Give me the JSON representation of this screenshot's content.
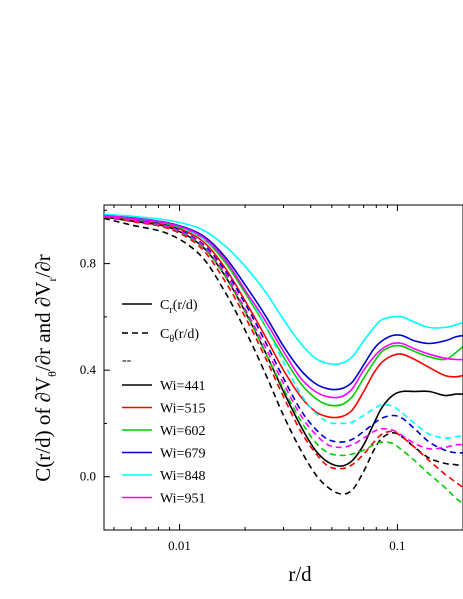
{
  "chart_data": {
    "type": "line",
    "xlabel": "r/d",
    "ylabel": "C(r/d) of ∂Vθ/∂r and ∂Vr/∂r",
    "x_scale": "log",
    "xlim": [
      0.0045,
      0.2
    ],
    "ylim": [
      -0.2,
      1.02
    ],
    "x_ticks": [
      0.01,
      0.1
    ],
    "x_tick_labels": [
      "0.01",
      "0.1"
    ],
    "y_ticks": [
      0.0,
      0.4,
      0.8
    ],
    "y_tick_labels": [
      "0.0",
      "0.4",
      "0.8"
    ],
    "legend_position": "center-left",
    "legend": {
      "style_solid": {
        "main": "C",
        "sub": "r",
        "tail": "(r/d)"
      },
      "style_dashed": {
        "main": "C",
        "sub": "θ",
        "tail": "(r/d)"
      },
      "separator": "--"
    },
    "series": [
      {
        "name": "Wi=441",
        "color": "#000000",
        "solid": [
          [
            0.0045,
            0.975
          ],
          [
            0.006,
            0.96
          ],
          [
            0.009,
            0.935
          ],
          [
            0.0125,
            0.87
          ],
          [
            0.016,
            0.76
          ],
          [
            0.02,
            0.62
          ],
          [
            0.025,
            0.46
          ],
          [
            0.03,
            0.32
          ],
          [
            0.036,
            0.19
          ],
          [
            0.042,
            0.1
          ],
          [
            0.048,
            0.055
          ],
          [
            0.055,
            0.04
          ],
          [
            0.062,
            0.06
          ],
          [
            0.07,
            0.12
          ],
          [
            0.078,
            0.2
          ],
          [
            0.085,
            0.26
          ],
          [
            0.095,
            0.305
          ],
          [
            0.105,
            0.32
          ],
          [
            0.12,
            0.32
          ],
          [
            0.14,
            0.32
          ],
          [
            0.165,
            0.305
          ],
          [
            0.185,
            0.31
          ],
          [
            0.2,
            0.31
          ]
        ],
        "dashed": [
          [
            0.0045,
            0.97
          ],
          [
            0.006,
            0.945
          ],
          [
            0.009,
            0.91
          ],
          [
            0.0125,
            0.83
          ],
          [
            0.016,
            0.7
          ],
          [
            0.02,
            0.55
          ],
          [
            0.025,
            0.38
          ],
          [
            0.03,
            0.23
          ],
          [
            0.036,
            0.1
          ],
          [
            0.042,
            0.01
          ],
          [
            0.048,
            -0.04
          ],
          [
            0.055,
            -0.065
          ],
          [
            0.062,
            -0.05
          ],
          [
            0.07,
            0.02
          ],
          [
            0.078,
            0.1
          ],
          [
            0.085,
            0.145
          ],
          [
            0.095,
            0.165
          ],
          [
            0.105,
            0.15
          ],
          [
            0.12,
            0.11
          ],
          [
            0.14,
            0.07
          ],
          [
            0.165,
            0.05
          ],
          [
            0.185,
            0.045
          ],
          [
            0.2,
            0.04
          ]
        ]
      },
      {
        "name": "Wi=515",
        "color": "#ff0000",
        "solid": [
          [
            0.0045,
            0.978
          ],
          [
            0.006,
            0.965
          ],
          [
            0.009,
            0.942
          ],
          [
            0.0125,
            0.89
          ],
          [
            0.016,
            0.79
          ],
          [
            0.02,
            0.66
          ],
          [
            0.025,
            0.52
          ],
          [
            0.03,
            0.4
          ],
          [
            0.036,
            0.3
          ],
          [
            0.042,
            0.245
          ],
          [
            0.048,
            0.225
          ],
          [
            0.055,
            0.225
          ],
          [
            0.062,
            0.25
          ],
          [
            0.07,
            0.32
          ],
          [
            0.078,
            0.39
          ],
          [
            0.085,
            0.43
          ],
          [
            0.095,
            0.455
          ],
          [
            0.105,
            0.46
          ],
          [
            0.12,
            0.44
          ],
          [
            0.14,
            0.41
          ],
          [
            0.165,
            0.38
          ],
          [
            0.185,
            0.375
          ],
          [
            0.2,
            0.38
          ]
        ],
        "dashed": [
          [
            0.0045,
            0.975
          ],
          [
            0.006,
            0.958
          ],
          [
            0.009,
            0.93
          ],
          [
            0.0125,
            0.86
          ],
          [
            0.016,
            0.74
          ],
          [
            0.02,
            0.6
          ],
          [
            0.025,
            0.44
          ],
          [
            0.03,
            0.3
          ],
          [
            0.036,
            0.17
          ],
          [
            0.042,
            0.09
          ],
          [
            0.048,
            0.04
          ],
          [
            0.055,
            0.03
          ],
          [
            0.062,
            0.045
          ],
          [
            0.07,
            0.085
          ],
          [
            0.078,
            0.13
          ],
          [
            0.085,
            0.16
          ],
          [
            0.095,
            0.17
          ],
          [
            0.105,
            0.15
          ],
          [
            0.12,
            0.11
          ],
          [
            0.14,
            0.06
          ],
          [
            0.165,
            0.01
          ],
          [
            0.185,
            -0.02
          ],
          [
            0.2,
            -0.04
          ]
        ]
      },
      {
        "name": "Wi=602",
        "color": "#00cc00",
        "solid": [
          [
            0.0045,
            0.98
          ],
          [
            0.006,
            0.968
          ],
          [
            0.009,
            0.946
          ],
          [
            0.0125,
            0.9
          ],
          [
            0.016,
            0.81
          ],
          [
            0.02,
            0.69
          ],
          [
            0.025,
            0.56
          ],
          [
            0.03,
            0.45
          ],
          [
            0.036,
            0.35
          ],
          [
            0.042,
            0.295
          ],
          [
            0.048,
            0.27
          ],
          [
            0.055,
            0.27
          ],
          [
            0.062,
            0.3
          ],
          [
            0.07,
            0.37
          ],
          [
            0.078,
            0.43
          ],
          [
            0.085,
            0.47
          ],
          [
            0.095,
            0.49
          ],
          [
            0.105,
            0.49
          ],
          [
            0.12,
            0.47
          ],
          [
            0.14,
            0.45
          ],
          [
            0.165,
            0.44
          ],
          [
            0.185,
            0.465
          ],
          [
            0.2,
            0.49
          ]
        ],
        "dashed": [
          [
            0.0045,
            0.977
          ],
          [
            0.006,
            0.962
          ],
          [
            0.009,
            0.935
          ],
          [
            0.0125,
            0.87
          ],
          [
            0.016,
            0.76
          ],
          [
            0.02,
            0.62
          ],
          [
            0.025,
            0.46
          ],
          [
            0.03,
            0.33
          ],
          [
            0.036,
            0.21
          ],
          [
            0.042,
            0.13
          ],
          [
            0.048,
            0.09
          ],
          [
            0.055,
            0.08
          ],
          [
            0.062,
            0.085
          ],
          [
            0.07,
            0.1
          ],
          [
            0.078,
            0.12
          ],
          [
            0.085,
            0.13
          ],
          [
            0.095,
            0.125
          ],
          [
            0.105,
            0.1
          ],
          [
            0.12,
            0.06
          ],
          [
            0.14,
            0.01
          ],
          [
            0.165,
            -0.04
          ],
          [
            0.185,
            -0.08
          ],
          [
            0.2,
            -0.1
          ]
        ]
      },
      {
        "name": "Wi=679",
        "color": "#0000cc",
        "solid": [
          [
            0.0045,
            0.982
          ],
          [
            0.006,
            0.972
          ],
          [
            0.009,
            0.952
          ],
          [
            0.0125,
            0.91
          ],
          [
            0.016,
            0.83
          ],
          [
            0.02,
            0.72
          ],
          [
            0.025,
            0.6
          ],
          [
            0.03,
            0.49
          ],
          [
            0.036,
            0.4
          ],
          [
            0.042,
            0.35
          ],
          [
            0.048,
            0.33
          ],
          [
            0.055,
            0.33
          ],
          [
            0.062,
            0.355
          ],
          [
            0.07,
            0.42
          ],
          [
            0.078,
            0.48
          ],
          [
            0.085,
            0.51
          ],
          [
            0.095,
            0.53
          ],
          [
            0.105,
            0.53
          ],
          [
            0.12,
            0.51
          ],
          [
            0.14,
            0.5
          ],
          [
            0.165,
            0.51
          ],
          [
            0.185,
            0.525
          ],
          [
            0.2,
            0.53
          ]
        ],
        "dashed": [
          [
            0.0045,
            0.98
          ],
          [
            0.006,
            0.965
          ],
          [
            0.009,
            0.94
          ],
          [
            0.0125,
            0.88
          ],
          [
            0.016,
            0.78
          ],
          [
            0.02,
            0.65
          ],
          [
            0.025,
            0.5
          ],
          [
            0.03,
            0.37
          ],
          [
            0.036,
            0.25
          ],
          [
            0.042,
            0.18
          ],
          [
            0.048,
            0.14
          ],
          [
            0.055,
            0.13
          ],
          [
            0.062,
            0.14
          ],
          [
            0.07,
            0.17
          ],
          [
            0.078,
            0.2
          ],
          [
            0.085,
            0.22
          ],
          [
            0.095,
            0.23
          ],
          [
            0.105,
            0.22
          ],
          [
            0.12,
            0.18
          ],
          [
            0.14,
            0.13
          ],
          [
            0.165,
            0.1
          ],
          [
            0.185,
            0.09
          ],
          [
            0.2,
            0.09
          ]
        ]
      },
      {
        "name": "Wi=848",
        "color": "#00ffff",
        "solid": [
          [
            0.0045,
            0.985
          ],
          [
            0.006,
            0.978
          ],
          [
            0.009,
            0.962
          ],
          [
            0.0125,
            0.93
          ],
          [
            0.016,
            0.87
          ],
          [
            0.02,
            0.79
          ],
          [
            0.025,
            0.69
          ],
          [
            0.03,
            0.59
          ],
          [
            0.036,
            0.5
          ],
          [
            0.042,
            0.445
          ],
          [
            0.048,
            0.425
          ],
          [
            0.055,
            0.425
          ],
          [
            0.062,
            0.45
          ],
          [
            0.07,
            0.51
          ],
          [
            0.078,
            0.56
          ],
          [
            0.085,
            0.59
          ],
          [
            0.095,
            0.6
          ],
          [
            0.105,
            0.6
          ],
          [
            0.12,
            0.58
          ],
          [
            0.14,
            0.56
          ],
          [
            0.165,
            0.56
          ],
          [
            0.185,
            0.57
          ],
          [
            0.2,
            0.58
          ]
        ],
        "dashed": [
          [
            0.0045,
            0.983
          ],
          [
            0.006,
            0.97
          ],
          [
            0.009,
            0.95
          ],
          [
            0.0125,
            0.9
          ],
          [
            0.016,
            0.82
          ],
          [
            0.02,
            0.7
          ],
          [
            0.025,
            0.56
          ],
          [
            0.03,
            0.43
          ],
          [
            0.036,
            0.31
          ],
          [
            0.042,
            0.24
          ],
          [
            0.048,
            0.205
          ],
          [
            0.055,
            0.2
          ],
          [
            0.062,
            0.205
          ],
          [
            0.07,
            0.23
          ],
          [
            0.078,
            0.255
          ],
          [
            0.085,
            0.27
          ],
          [
            0.095,
            0.265
          ],
          [
            0.105,
            0.24
          ],
          [
            0.12,
            0.2
          ],
          [
            0.14,
            0.16
          ],
          [
            0.165,
            0.145
          ],
          [
            0.185,
            0.15
          ],
          [
            0.2,
            0.155
          ]
        ]
      },
      {
        "name": "Wi=951",
        "color": "#ff00ff",
        "solid": [
          [
            0.0045,
            0.981
          ],
          [
            0.006,
            0.97
          ],
          [
            0.009,
            0.95
          ],
          [
            0.0125,
            0.905
          ],
          [
            0.016,
            0.82
          ],
          [
            0.02,
            0.7
          ],
          [
            0.025,
            0.58
          ],
          [
            0.03,
            0.47
          ],
          [
            0.036,
            0.37
          ],
          [
            0.042,
            0.32
          ],
          [
            0.048,
            0.3
          ],
          [
            0.055,
            0.3
          ],
          [
            0.062,
            0.33
          ],
          [
            0.07,
            0.4
          ],
          [
            0.078,
            0.45
          ],
          [
            0.085,
            0.48
          ],
          [
            0.095,
            0.5
          ],
          [
            0.105,
            0.5
          ],
          [
            0.12,
            0.48
          ],
          [
            0.14,
            0.46
          ],
          [
            0.165,
            0.445
          ],
          [
            0.185,
            0.44
          ],
          [
            0.2,
            0.44
          ]
        ],
        "dashed": [
          [
            0.0045,
            0.978
          ],
          [
            0.006,
            0.963
          ],
          [
            0.009,
            0.937
          ],
          [
            0.0125,
            0.875
          ],
          [
            0.016,
            0.77
          ],
          [
            0.02,
            0.63
          ],
          [
            0.025,
            0.48
          ],
          [
            0.03,
            0.35
          ],
          [
            0.036,
            0.23
          ],
          [
            0.042,
            0.16
          ],
          [
            0.048,
            0.12
          ],
          [
            0.055,
            0.11
          ],
          [
            0.062,
            0.12
          ],
          [
            0.07,
            0.145
          ],
          [
            0.078,
            0.17
          ],
          [
            0.085,
            0.18
          ],
          [
            0.095,
            0.175
          ],
          [
            0.105,
            0.155
          ],
          [
            0.12,
            0.125
          ],
          [
            0.14,
            0.105
          ],
          [
            0.165,
            0.11
          ],
          [
            0.185,
            0.12
          ],
          [
            0.2,
            0.12
          ]
        ]
      }
    ]
  }
}
